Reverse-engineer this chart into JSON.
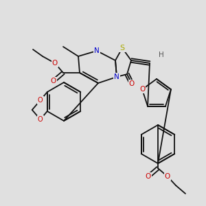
{
  "bg_color": "#e0e0e0",
  "atom_colors": {
    "N": "#0000cc",
    "O": "#cc0000",
    "S": "#aaaa00",
    "H": "#555555"
  },
  "bond_color": "#111111",
  "figsize": [
    3.0,
    3.0
  ],
  "dpi": 100
}
